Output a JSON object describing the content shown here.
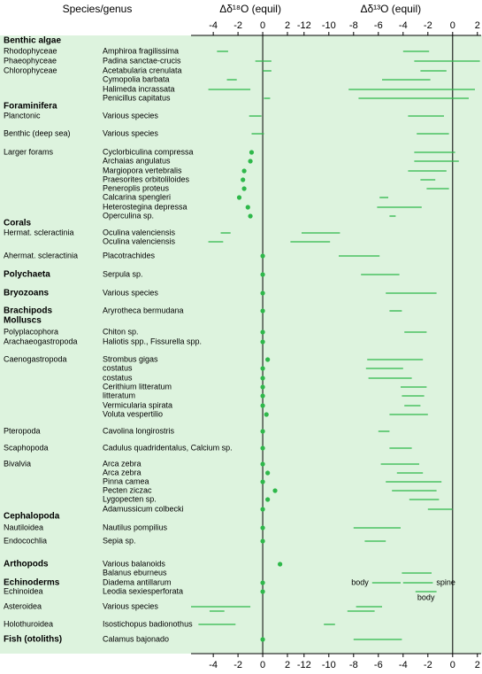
{
  "chart_data": {
    "type": "range",
    "row_header": "Species/genus",
    "groups": [
      "Benthic algae",
      "Rhodophyceae",
      "Phaeophyceae",
      "Chlorophyceae",
      null,
      null,
      null,
      "Foraminifera",
      "Planctonic",
      "Benthic (deep sea)",
      "Larger forams",
      null,
      null,
      null,
      null,
      null,
      null,
      null,
      "Corals",
      "Hermat. scleractinia",
      null,
      "Ahermat. scleractinia",
      "Polychaeta",
      "Bryozoans",
      "Brachipods",
      "Molluscs",
      "Polyplacophora",
      "Arachaeogastropoda",
      "Caenogastropoda",
      null,
      null,
      null,
      null,
      null,
      null,
      "Pteropoda",
      "Scaphopoda",
      "Bivalvia",
      null,
      null,
      null,
      null,
      null,
      "Cephalopoda",
      "Nautiloidea",
      "Endocochlia",
      "Arthopods",
      null,
      "Echinoderms",
      "Echinoidea",
      "Asteroidea",
      null,
      "Holothuroidea",
      "Fish (otoliths)"
    ],
    "bold": [
      true,
      false,
      false,
      false,
      false,
      false,
      false,
      true,
      false,
      false,
      false,
      false,
      false,
      false,
      false,
      false,
      false,
      false,
      true,
      false,
      false,
      false,
      true,
      true,
      true,
      true,
      false,
      false,
      false,
      false,
      false,
      false,
      false,
      false,
      false,
      false,
      false,
      false,
      false,
      false,
      false,
      false,
      false,
      true,
      false,
      false,
      true,
      false,
      true,
      false,
      false,
      false,
      false,
      true
    ],
    "species": [
      null,
      "Amphiroa fragilissima",
      "Padina sanctae-crucis",
      "Acetabularia crenulata",
      "Cymopolia barbata",
      "Halimeda incrassata",
      "Penicillus capitatus",
      null,
      "Various species",
      "Various species",
      "Cyclorbiculina compressa",
      "Archaias angulatus",
      "Margiopora vertebralis",
      "Praesorites orbitoliloides",
      "Peneroplis proteus",
      "Calcarina spengleri",
      "Heterostegina depressa",
      "Operculina sp.",
      null,
      "Oculina valenciensis",
      "Oculina valenciensis",
      "Placotrachides",
      "Serpula sp.",
      "Various species",
      "Aryrotheca bermudana",
      null,
      "Chiton sp.",
      "Haliotis spp., Fissurella spp.",
      "Strombus gigas",
      "costatus",
      "costatus",
      "Cerithium litteratum",
      "litteratum",
      "Vermicularia spirata",
      "Voluta vespertilio",
      "Cavolina longirostris",
      "Cadulus quadridentalus, Calcium sp.",
      "Arca zebra",
      "Arca zebra",
      "Pinna camea",
      "Pecten ziczac",
      "Lygopecten sp.",
      "Adamussicum colbecki",
      null,
      "Nautilus pompilius",
      "Sepia sp.",
      "Various balanoids",
      "Balanus eburneus",
      "Diadema antillarum",
      "Leodia sexiesperforata",
      "Various species",
      null,
      "Isostichopus badionothus",
      "Calamus bajonado"
    ],
    "panels": [
      {
        "title": "Δδ¹⁸O (equil)",
        "xlim": [
          -5.8,
          2.5
        ],
        "xticks": [
          -4,
          -2,
          0,
          2
        ],
        "color": "#2eb84a",
        "points": [
          null,
          null,
          null,
          null,
          null,
          null,
          null,
          null,
          null,
          null,
          -0.9,
          -1.0,
          -1.5,
          -1.6,
          -1.5,
          -1.9,
          -1.2,
          -1.0,
          null,
          null,
          null,
          0,
          0,
          0,
          0,
          null,
          0,
          0,
          0.4,
          0,
          0,
          0,
          0,
          0,
          0.3,
          0,
          0,
          0,
          0.4,
          0,
          1.0,
          0.4,
          0,
          null,
          0,
          0,
          1.4,
          null,
          0,
          0,
          null,
          null,
          null,
          0
        ],
        "ranges": [
          [],
          [
            [
              -3.7,
              -2.8
            ]
          ],
          [
            [
              -0.6,
              0.7
            ]
          ],
          [
            [
              0,
              0.7
            ]
          ],
          [
            [
              -2.9,
              -2.1
            ]
          ],
          [
            [
              -4.4,
              -1.0
            ]
          ],
          [
            [
              0.1,
              0.6
            ]
          ],
          [],
          [
            [
              -1.1,
              -0.1
            ]
          ],
          [
            [
              -0.9,
              0.1
            ]
          ],
          [],
          [],
          [],
          [],
          [],
          [],
          [],
          [],
          [],
          [
            [
              -3.4,
              -2.6
            ]
          ],
          [
            [
              -4.4,
              -3.2
            ]
          ],
          [],
          [],
          [],
          [],
          [],
          [],
          [],
          [],
          [],
          [],
          [],
          [],
          [],
          [],
          [],
          [],
          [],
          [],
          [],
          [],
          [],
          [],
          [],
          [],
          [],
          [],
          [],
          [],
          [],
          [
            [
              -5.8,
              -1.0
            ]
          ],
          [
            [
              -4.3,
              -3.1
            ]
          ],
          [
            [
              -5.2,
              -2.2
            ]
          ],
          []
        ],
        "range_labels": []
      },
      {
        "title": "Δδ¹³O (equil)",
        "xlim": [
          -13.2,
          2.3
        ],
        "xticks": [
          -12,
          -10,
          -8,
          -6,
          -4,
          -2,
          0,
          2
        ],
        "color": "#2eb84a",
        "points": [],
        "ranges": [
          [],
          [
            [
              -4.0,
              -1.9
            ]
          ],
          [
            [
              -3.1,
              2.2
            ]
          ],
          [
            [
              -2.6,
              -0.5
            ]
          ],
          [
            [
              -5.7,
              -1.8
            ]
          ],
          [
            [
              -8.4,
              1.8
            ]
          ],
          [
            [
              -7.6,
              1.3
            ]
          ],
          [],
          [
            [
              -3.6,
              -0.7
            ]
          ],
          [
            [
              -2.9,
              -0.3
            ]
          ],
          [
            [
              -3.1,
              0.2
            ]
          ],
          [
            [
              -3.1,
              0.5
            ]
          ],
          [
            [
              -3.6,
              -0.5
            ]
          ],
          [
            [
              -2.6,
              -1.4
            ]
          ],
          [
            [
              -2.1,
              -0.3
            ]
          ],
          [
            [
              -5.9,
              -5.2
            ]
          ],
          [
            [
              -6.1,
              -2.5
            ]
          ],
          [
            [
              -5.1,
              -4.6
            ]
          ],
          [],
          [
            [
              -12.2,
              -9.1
            ]
          ],
          [
            [
              -13.1,
              -9.9
            ]
          ],
          [
            [
              -9.2,
              -5.9
            ]
          ],
          [
            [
              -7.4,
              -4.3
            ]
          ],
          [
            [
              -5.4,
              -1.3
            ]
          ],
          [
            [
              -5.1,
              -4.1
            ]
          ],
          [],
          [
            [
              -3.9,
              -2.1
            ]
          ],
          [],
          [
            [
              -6.9,
              -2.4
            ]
          ],
          [
            [
              -7.0,
              -4.0
            ]
          ],
          [
            [
              -6.8,
              -3.3
            ]
          ],
          [
            [
              -4.2,
              -2.1
            ]
          ],
          [
            [
              -4.1,
              -2.3
            ]
          ],
          [
            [
              -3.9,
              -2.6
            ]
          ],
          [
            [
              -5.1,
              -2.0
            ]
          ],
          [
            [
              -6.0,
              -5.1
            ]
          ],
          [
            [
              -5.1,
              -3.3
            ]
          ],
          [
            [
              -5.8,
              -2.7
            ]
          ],
          [
            [
              -4.5,
              -2.4
            ]
          ],
          [
            [
              -5.4,
              -0.9
            ]
          ],
          [
            [
              -4.9,
              -1.3
            ]
          ],
          [
            [
              -3.5,
              -1.1
            ]
          ],
          [
            [
              -2.0,
              0.0
            ]
          ],
          [],
          [
            [
              -8.0,
              -4.2
            ]
          ],
          [
            [
              -7.1,
              -5.4
            ]
          ],
          [],
          [
            [
              -4.1,
              -1.7
            ]
          ],
          [
            [
              -6.5,
              -4.2
            ],
            [
              -4.0,
              -1.6
            ]
          ],
          [
            [
              -3.0,
              -1.3
            ]
          ],
          [
            [
              -7.8,
              -5.7
            ]
          ],
          [
            [
              -8.5,
              -6.3
            ]
          ],
          [
            [
              -10.4,
              -9.5
            ]
          ],
          [
            [
              -8.0,
              -4.1
            ]
          ]
        ],
        "range_labels": [
          [],
          [],
          [],
          [],
          [],
          [],
          [],
          [],
          [],
          [],
          [],
          [],
          [],
          [],
          [],
          [],
          [],
          [],
          [],
          [],
          [],
          [],
          [],
          [],
          [],
          [],
          [],
          [],
          [],
          [],
          [],
          [],
          [],
          [],
          [],
          [],
          [],
          [],
          [],
          [],
          [],
          [],
          [],
          [],
          [],
          [],
          [],
          [],
          [
            "body",
            "spine"
          ],
          [
            "body"
          ],
          [],
          [],
          [],
          []
        ]
      }
    ]
  }
}
